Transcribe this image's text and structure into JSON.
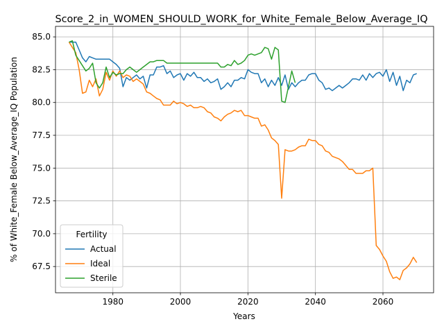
{
  "chart_data": {
    "type": "line",
    "title": "Score_2_in_WOMEN_SHOULD_WORK_for_White_Female_Below_Average_IQ",
    "xlabel": "Years",
    "ylabel": "% of White_Female Below_Average_IQ Population",
    "xlim": [
      1963,
      2075
    ],
    "ylim": [
      65.5,
      85.8
    ],
    "xticks": [
      1980,
      2000,
      2020,
      2040,
      2060
    ],
    "xtick_labels": [
      "1980",
      "2000",
      "2020",
      "2040",
      "2060"
    ],
    "yticks": [
      67.5,
      70.0,
      72.5,
      75.0,
      77.5,
      80.0,
      82.5,
      85.0
    ],
    "ytick_labels": [
      "67.5",
      "70.0",
      "72.5",
      "75.0",
      "77.5",
      "80.0",
      "82.5",
      "85.0"
    ],
    "grid": true,
    "legend": {
      "title": "Fertility",
      "position": "lower-left"
    },
    "series": [
      {
        "name": "Actual",
        "color": "#1f77b4",
        "x": [
          1967,
          1968,
          1969,
          1970,
          1971,
          1972,
          1973,
          1974,
          1975,
          1976,
          1977,
          1978,
          1979,
          1980,
          1981,
          1982,
          1983,
          1984,
          1985,
          1986,
          1987,
          1988,
          1989,
          1990,
          1991,
          1992,
          1993,
          1994,
          1995,
          1996,
          1997,
          1998,
          1999,
          2000,
          2001,
          2002,
          2003,
          2004,
          2005,
          2006,
          2007,
          2008,
          2009,
          2010,
          2011,
          2012,
          2013,
          2014,
          2015,
          2016,
          2017,
          2018,
          2019,
          2020,
          2021,
          2022,
          2023,
          2024,
          2025,
          2026,
          2027,
          2028,
          2029,
          2030,
          2031,
          2032,
          2033,
          2034,
          2035,
          2036,
          2037,
          2038,
          2039,
          2040,
          2041,
          2042,
          2043,
          2044,
          2045,
          2046,
          2047,
          2048,
          2049,
          2050,
          2051,
          2052,
          2053,
          2054,
          2055,
          2056,
          2057,
          2058,
          2059,
          2060,
          2061,
          2062,
          2063,
          2064,
          2065,
          2066,
          2067,
          2068,
          2069,
          2070
        ],
        "y": [
          84.6,
          84.6,
          84.6,
          84.0,
          83.4,
          83.1,
          83.5,
          83.4,
          83.3,
          83.3,
          83.3,
          83.3,
          83.3,
          83.1,
          82.9,
          82.6,
          81.2,
          81.9,
          81.7,
          81.9,
          82.1,
          81.8,
          82.0,
          81.1,
          82.1,
          82.1,
          82.7,
          82.7,
          82.8,
          82.2,
          82.4,
          81.9,
          82.1,
          82.2,
          81.7,
          82.2,
          82.0,
          82.3,
          81.9,
          81.9,
          81.6,
          81.8,
          81.5,
          81.6,
          81.8,
          81.0,
          81.2,
          81.5,
          81.2,
          81.7,
          81.7,
          81.9,
          81.8,
          82.5,
          82.3,
          82.2,
          82.2,
          81.5,
          81.8,
          81.2,
          81.7,
          81.3,
          81.9,
          81.3,
          82.1,
          81.0,
          81.5,
          81.2,
          81.5,
          81.7,
          81.7,
          82.1,
          82.2,
          82.2,
          81.7,
          81.5,
          81.0,
          81.1,
          80.9,
          81.1,
          81.3,
          81.1,
          81.3,
          81.5,
          81.8,
          81.8,
          81.7,
          82.1,
          81.7,
          82.2,
          81.9,
          82.2,
          82.3,
          82.0,
          82.5,
          81.6,
          82.3,
          81.3,
          82.0,
          80.9,
          81.7,
          81.5,
          82.1,
          82.2
        ]
      },
      {
        "name": "Ideal",
        "color": "#ff7f0e",
        "x": [
          1967,
          1968,
          1969,
          1970,
          1971,
          1972,
          1973,
          1974,
          1975,
          1976,
          1977,
          1978,
          1979,
          1980,
          1981,
          1982,
          1983,
          1984,
          1985,
          1986,
          1987,
          1988,
          1989,
          1990,
          1991,
          1992,
          1993,
          1994,
          1995,
          1996,
          1997,
          1998,
          1999,
          2000,
          2001,
          2002,
          2003,
          2004,
          2005,
          2006,
          2007,
          2008,
          2009,
          2010,
          2011,
          2012,
          2013,
          2014,
          2015,
          2016,
          2017,
          2018,
          2019,
          2020,
          2021,
          2022,
          2023,
          2024,
          2025,
          2026,
          2027,
          2028,
          2029,
          2030,
          2031,
          2032,
          2033,
          2034,
          2035,
          2036,
          2037,
          2038,
          2039,
          2040,
          2041,
          2042,
          2043,
          2044,
          2045,
          2046,
          2047,
          2048,
          2049,
          2050,
          2051,
          2052,
          2053,
          2054,
          2055,
          2056,
          2057,
          2058,
          2059,
          2060,
          2061,
          2062,
          2063,
          2064,
          2065,
          2066,
          2067,
          2068,
          2069,
          2070
        ],
        "y": [
          84.6,
          84.2,
          83.8,
          82.5,
          80.7,
          80.8,
          81.7,
          81.2,
          81.8,
          80.5,
          81.0,
          82.3,
          81.7,
          82.4,
          82.0,
          82.4,
          81.9,
          82.1,
          82.0,
          81.6,
          81.8,
          81.6,
          81.4,
          80.8,
          80.7,
          80.5,
          80.3,
          80.2,
          79.8,
          79.8,
          79.8,
          80.1,
          79.9,
          80.0,
          79.9,
          79.7,
          79.8,
          79.6,
          79.6,
          79.7,
          79.6,
          79.3,
          79.2,
          78.9,
          78.8,
          78.6,
          78.9,
          79.1,
          79.2,
          79.4,
          79.3,
          79.4,
          79.0,
          79.0,
          78.9,
          78.8,
          78.8,
          78.2,
          78.3,
          77.9,
          77.3,
          77.1,
          76.8,
          72.7,
          76.4,
          76.3,
          76.3,
          76.4,
          76.6,
          76.7,
          76.7,
          77.2,
          77.1,
          77.1,
          76.8,
          76.7,
          76.3,
          76.2,
          75.9,
          75.8,
          75.7,
          75.5,
          75.2,
          74.9,
          74.9,
          74.6,
          74.6,
          74.6,
          74.8,
          74.8,
          75.0,
          69.1,
          68.8,
          68.3,
          67.9,
          67.1,
          66.6,
          66.7,
          66.5,
          67.2,
          67.4,
          67.7,
          68.2,
          67.8
        ]
      },
      {
        "name": "Sterile",
        "color": "#2ca02c",
        "x": [
          1967,
          1968,
          1969,
          1970,
          1971,
          1972,
          1973,
          1974,
          1975,
          1976,
          1977,
          1978,
          1979,
          1980,
          1981,
          1982,
          1983,
          1984,
          1985,
          1986,
          1987,
          1988,
          1989,
          1990,
          1991,
          1992,
          1993,
          1994,
          1995,
          1996,
          1997,
          1998,
          1999,
          2000,
          2001,
          2002,
          2003,
          2004,
          2005,
          2006,
          2007,
          2008,
          2009,
          2010,
          2011,
          2012,
          2013,
          2014,
          2015,
          2016,
          2017,
          2018,
          2019,
          2020,
          2021,
          2022,
          2023,
          2024,
          2025,
          2026,
          2027,
          2028,
          2029,
          2030,
          2031,
          2032,
          2033,
          2034
        ],
        "y": [
          84.6,
          84.7,
          83.6,
          83.2,
          82.8,
          82.4,
          82.6,
          83.0,
          81.5,
          81.1,
          81.5,
          82.7,
          81.9,
          82.3,
          82.1,
          82.2,
          82.2,
          82.5,
          82.7,
          82.5,
          82.3,
          82.5,
          82.7,
          82.9,
          83.1,
          83.1,
          83.2,
          83.2,
          83.2,
          83.0,
          83.0,
          83.0,
          83.0,
          83.0,
          83.0,
          83.0,
          83.0,
          83.0,
          83.0,
          83.0,
          83.0,
          83.0,
          83.0,
          83.0,
          83.0,
          82.7,
          82.7,
          82.9,
          82.8,
          83.2,
          82.9,
          83.0,
          83.2,
          83.6,
          83.7,
          83.6,
          83.7,
          83.8,
          84.2,
          84.1,
          83.3,
          84.2,
          84.0,
          80.1,
          80.0,
          81.2,
          82.4,
          81.5
        ]
      }
    ]
  }
}
